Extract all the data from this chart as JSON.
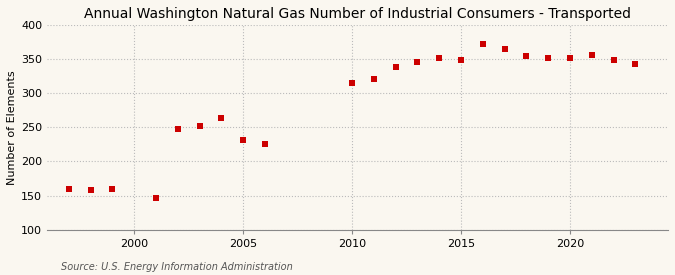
{
  "title": "Annual Washington Natural Gas Number of Industrial Consumers - Transported",
  "ylabel": "Number of Elements",
  "source": "Source: U.S. Energy Information Administration",
  "background_color": "#faf7f0",
  "plot_background_color": "#faf7f0",
  "marker_color": "#cc0000",
  "grid_color": "#bbbbbb",
  "years": [
    1997,
    1998,
    1999,
    2001,
    2002,
    2003,
    2004,
    2005,
    2006,
    2010,
    2011,
    2012,
    2013,
    2014,
    2015,
    2016,
    2017,
    2018,
    2019,
    2020,
    2021,
    2022,
    2023
  ],
  "values": [
    160,
    158,
    160,
    147,
    247,
    252,
    264,
    231,
    226,
    315,
    321,
    338,
    346,
    351,
    348,
    372,
    365,
    354,
    352,
    351,
    356,
    349,
    343
  ],
  "xlim": [
    1996,
    2024.5
  ],
  "ylim": [
    100,
    400
  ],
  "yticks": [
    100,
    150,
    200,
    250,
    300,
    350,
    400
  ],
  "xticks": [
    2000,
    2005,
    2010,
    2015,
    2020
  ],
  "title_fontsize": 10,
  "axis_fontsize": 8,
  "source_fontsize": 7,
  "marker_size": 4
}
